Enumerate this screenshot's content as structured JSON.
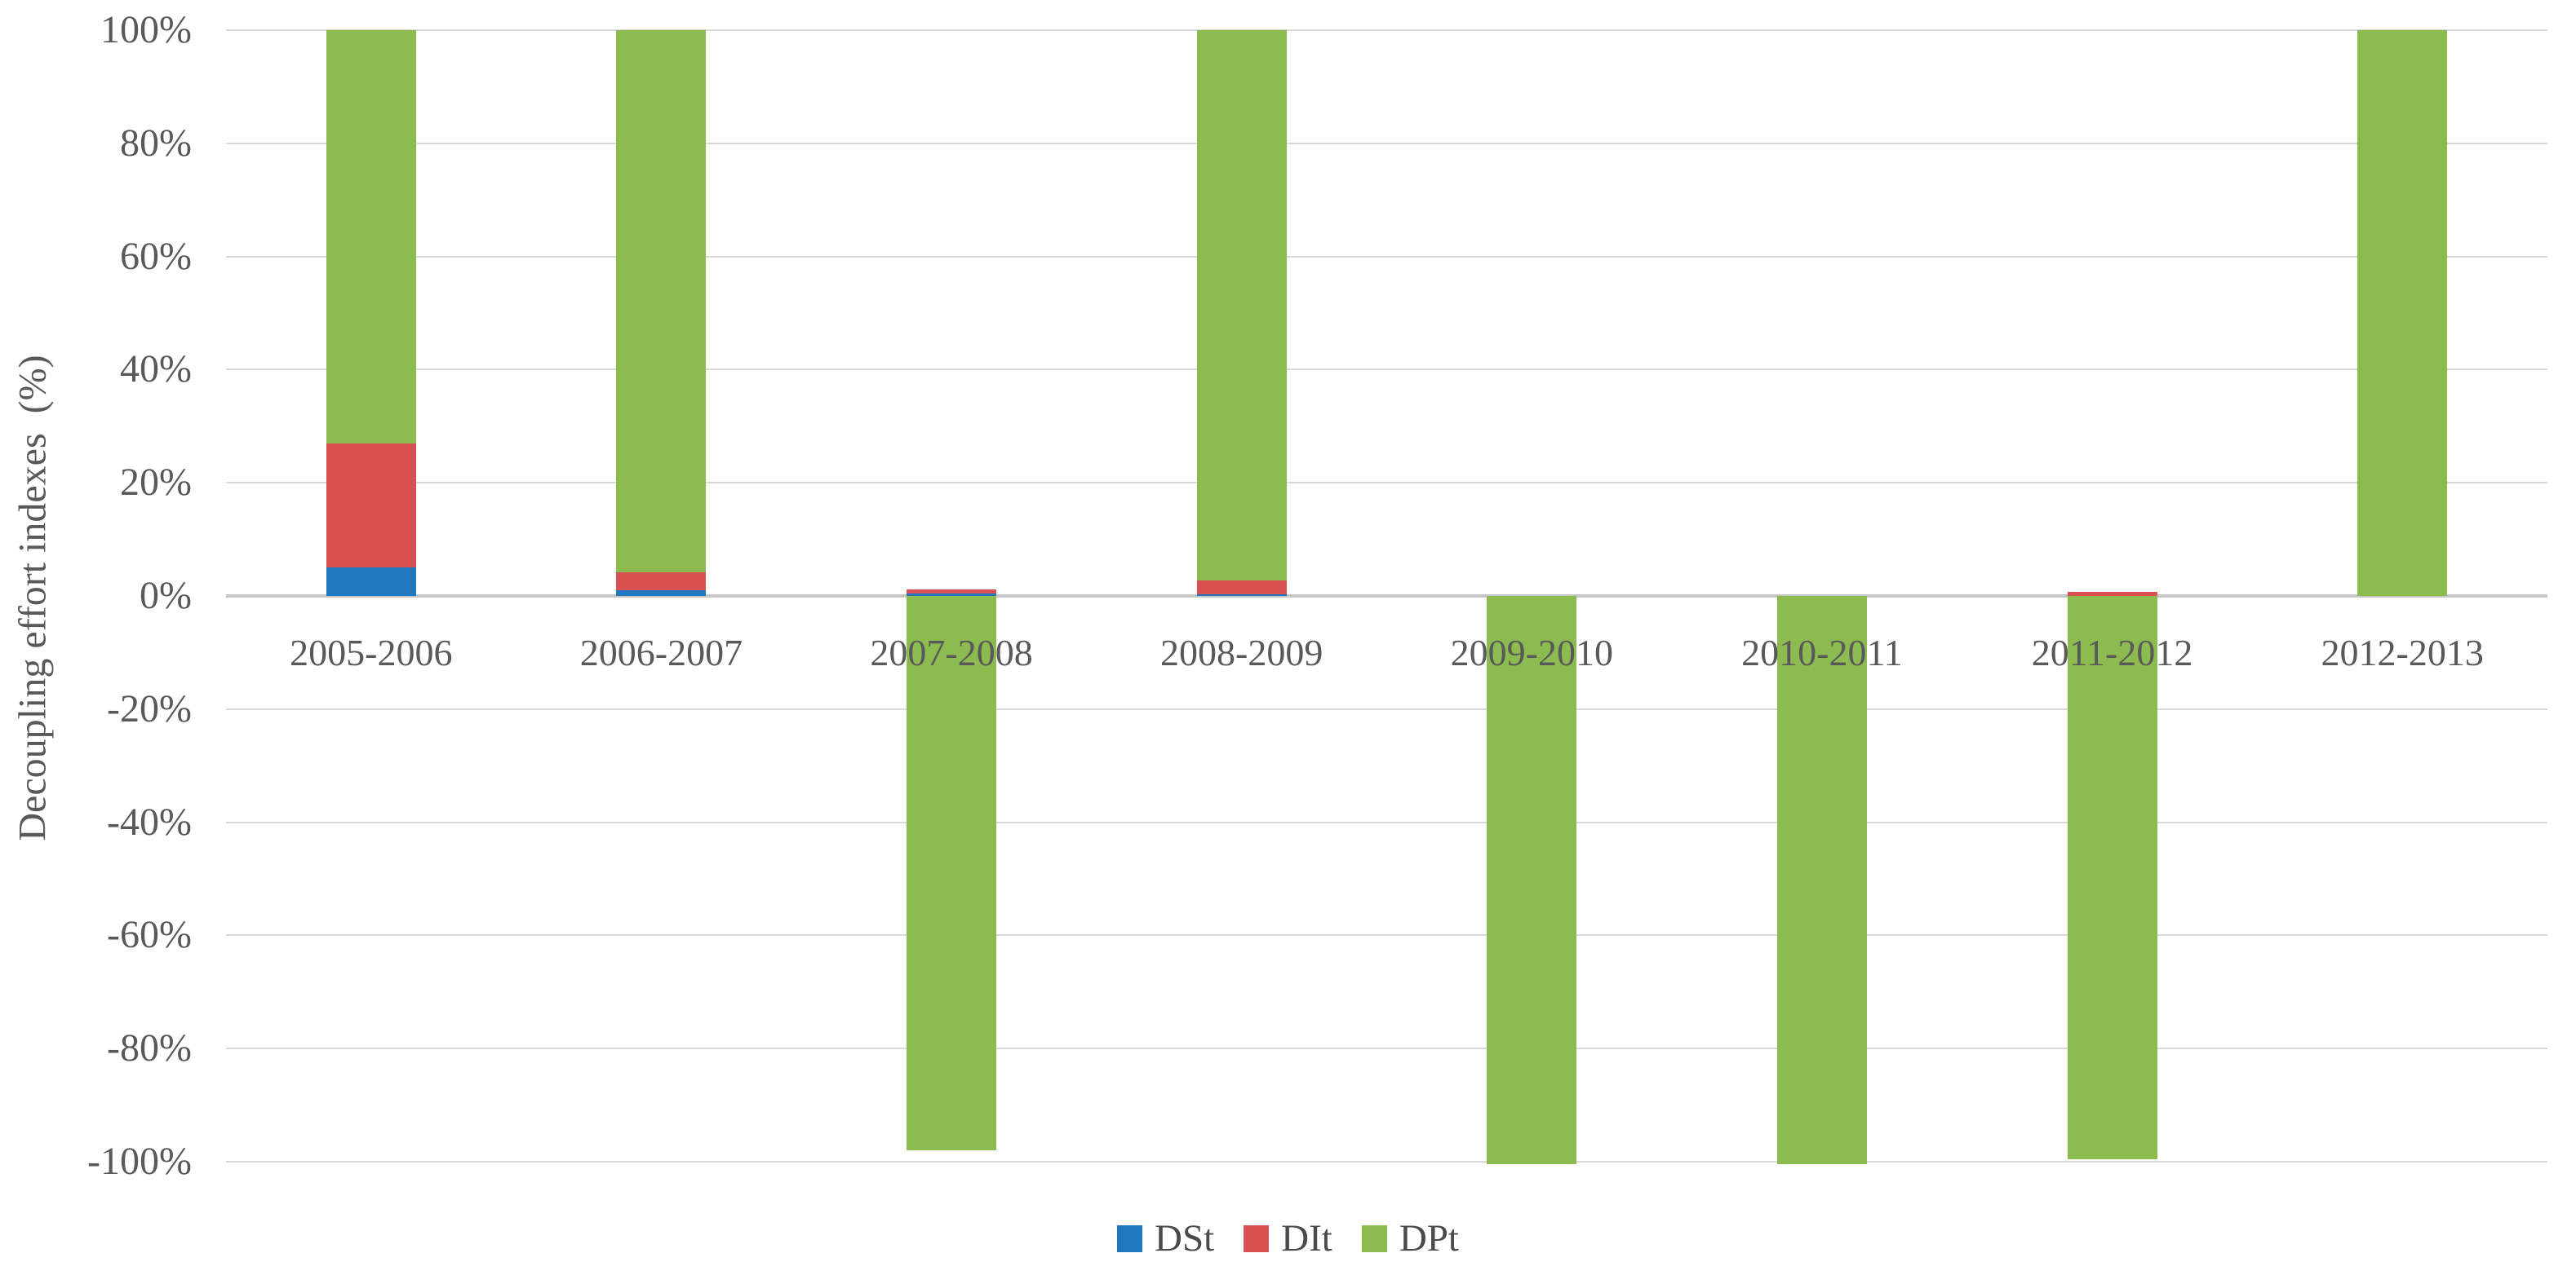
{
  "chart_data": {
    "type": "bar",
    "stacked": true,
    "title": "",
    "xlabel": "",
    "ylabel": "Decoupling effort indexes  (%)",
    "categories": [
      "2005-2006",
      "2006-2007",
      "2007-2008",
      "2008-2009",
      "2009-2010",
      "2010-2011",
      "2011-2012",
      "2012-2013"
    ],
    "series": [
      {
        "name": "DSt",
        "color": "#2079bf",
        "values": [
          5,
          1,
          0.4,
          0.3,
          0,
          0,
          0,
          0
        ]
      },
      {
        "name": "DIt",
        "color": "#d95152",
        "values": [
          22,
          3.2,
          0.8,
          2.5,
          0,
          0,
          0.7,
          0
        ]
      },
      {
        "name": "DPt",
        "color": "#8cbc50",
        "values": [
          73,
          95.8,
          -98,
          97.2,
          -100.5,
          -100.5,
          -99.5,
          100
        ]
      }
    ],
    "ylim": [
      -100,
      100
    ],
    "ytick_labels": [
      "100%",
      "80%",
      "60%",
      "40%",
      "20%",
      "0%",
      "-20%",
      "-40%",
      "-60%",
      "-80%",
      "-100%"
    ],
    "ytick_values": [
      100,
      80,
      60,
      40,
      20,
      0,
      -20,
      -40,
      -60,
      -80,
      -100
    ],
    "grid": true,
    "legend_position": "bottom",
    "legend_labels": [
      "DSt",
      "DIt",
      "DPt"
    ]
  }
}
